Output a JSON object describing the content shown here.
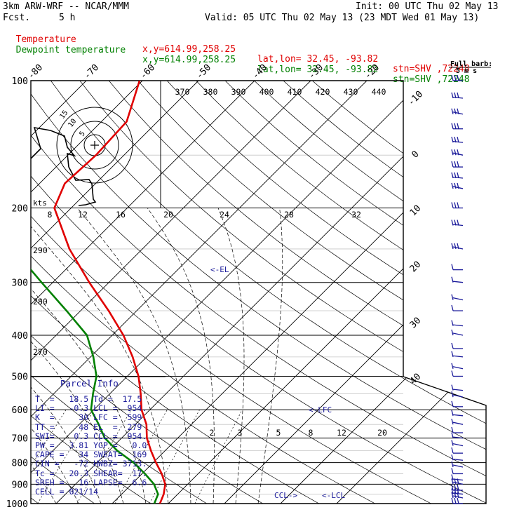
{
  "header": {
    "model": "3km ARW-WRF -- NCAR/MMM",
    "fcst_label": "Fcst.",
    "fcst_value": "5 h",
    "init": "Init: 00 UTC Thu 02 May 13",
    "valid": "Valid: 05 UTC Thu 02 May 13 (23 MDT Wed 01 May 13)"
  },
  "legend": [
    {
      "name": "Temperature",
      "xy": "x,y=614.99,258.25",
      "latlon": "lat,lon= 32.45, -93.82",
      "stn": "stn=SHV ,72248",
      "color": "#e00000"
    },
    {
      "name": "Dewpoint temperature",
      "xy": "x,y=614.99,258.25",
      "latlon": "lat,lon= 32.45, -93.82",
      "stn": "stn=SHV ,72248",
      "color": "#008000"
    }
  ],
  "barb_label": {
    "line1": "Full barb:",
    "line2": "5 m s"
  },
  "chart_data": {
    "type": "line",
    "subtype": "skew-T log-P",
    "y_scale": "log",
    "ylim": [
      1000,
      100
    ],
    "pressure_ticks": [
      100,
      200,
      300,
      400,
      500,
      600,
      700,
      800,
      900,
      1000
    ],
    "temperature_ticks": [
      -80,
      -70,
      -60,
      -50,
      -40,
      -30,
      -20,
      -10,
      0,
      10,
      20,
      30,
      40
    ],
    "theta_labels": [
      370,
      380,
      390,
      400,
      410,
      420,
      430,
      440
    ],
    "mixing_ratio_labels": [
      2,
      3,
      5,
      8,
      12,
      20
    ],
    "theta_e_labels_left": [
      290,
      280,
      270
    ],
    "series": [
      {
        "name": "Temperature",
        "color": "#e00000",
        "unit": "°C",
        "points": [
          [
            1000,
            18.5
          ],
          [
            950,
            17.5
          ],
          [
            900,
            16.0
          ],
          [
            850,
            13.5
          ],
          [
            800,
            10.5
          ],
          [
            750,
            7.5
          ],
          [
            700,
            4.5
          ],
          [
            650,
            2.0
          ],
          [
            600,
            -1.5
          ],
          [
            550,
            -4.5
          ],
          [
            500,
            -8.0
          ],
          [
            450,
            -12.5
          ],
          [
            400,
            -18.0
          ],
          [
            350,
            -25.0
          ],
          [
            300,
            -33.5
          ],
          [
            250,
            -43.0
          ],
          [
            200,
            -53.0
          ],
          [
            175,
            -55.5
          ],
          [
            150,
            -55.0
          ],
          [
            125,
            -55.5
          ],
          [
            100,
            -60.5
          ]
        ]
      },
      {
        "name": "Dewpoint temperature",
        "color": "#008000",
        "unit": "°C",
        "points": [
          [
            1000,
            17.5
          ],
          [
            950,
            16.5
          ],
          [
            900,
            14.0
          ],
          [
            850,
            10.5
          ],
          [
            800,
            6.5
          ],
          [
            750,
            1.5
          ],
          [
            700,
            -3.0
          ],
          [
            650,
            -6.5
          ],
          [
            600,
            -10.5
          ],
          [
            550,
            -13.0
          ],
          [
            500,
            -15.5
          ],
          [
            450,
            -19.5
          ],
          [
            400,
            -24.5
          ],
          [
            350,
            -32.5
          ],
          [
            300,
            -42.0
          ],
          [
            250,
            -53.0
          ],
          [
            225,
            -59.0
          ],
          [
            200,
            -63.0
          ],
          [
            175,
            -68.0
          ],
          [
            150,
            -75.0
          ],
          [
            125,
            -82.0
          ],
          [
            100,
            -85.0
          ]
        ]
      }
    ],
    "annotations": [
      {
        "text": "<-EL",
        "p": 279
      },
      {
        "text": "<-LFC",
        "p": 599
      },
      {
        "text": "<-LCL",
        "p": 954
      },
      {
        "text": "CCL->",
        "p": 954
      }
    ]
  },
  "hodograph": {
    "ring_labels": [
      "5",
      "10",
      "15"
    ],
    "units_label": "kts",
    "speed_ticks": [
      "8",
      "12",
      "16",
      "20",
      "24",
      "28",
      "32"
    ]
  },
  "parcel_info": {
    "title": "Parcel Info",
    "rows": [
      "T  =   18.5 Td =  17.5",
      "LI =   -0.3 LCL =  954.",
      "K  =     30 LFC =  599.",
      "TT =     48 EL  =  279",
      "SWI=    0.3 CCL =  954.",
      "PW =   3.81 YGP =   0.0",
      "CAPE =   34 SWEAT=  169",
      "CIN =   -72 HWBZ= 3713.",
      "Tc =   20.3 SHEAR=  17.",
      "SREH =   16 LAPSE=  6.6",
      "CELL = 021/14"
    ]
  },
  "wind_barbs": {
    "color": "#1a1a9a",
    "pressures": [
      100,
      110,
      120,
      130,
      140,
      150,
      160,
      170,
      180,
      200,
      220,
      250,
      280,
      300,
      330,
      350,
      380,
      400,
      430,
      450,
      480,
      500,
      540,
      560,
      590,
      620,
      650,
      680,
      700,
      730,
      760,
      790,
      820,
      850,
      880,
      900,
      930,
      950,
      970,
      1000
    ]
  }
}
